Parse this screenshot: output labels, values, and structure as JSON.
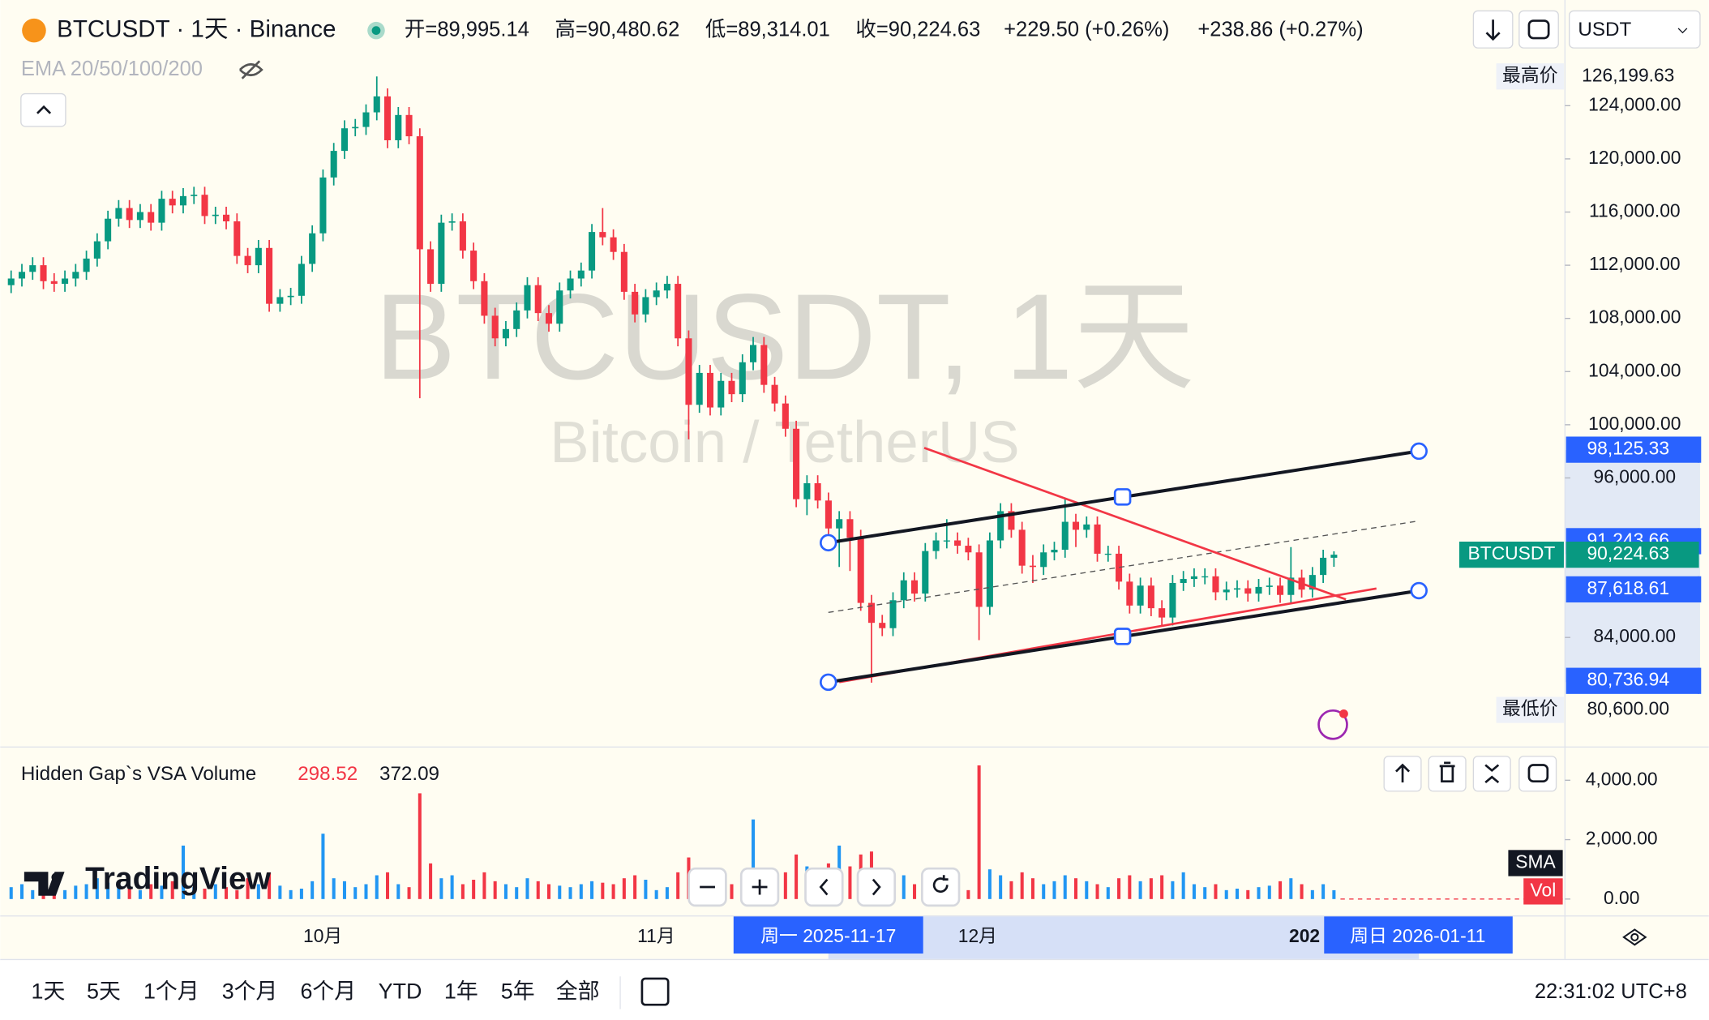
{
  "header": {
    "symbol": "BTCUSDT · 1天 · Binance",
    "quote": [
      "开=89,995.14",
      "高=90,480.62",
      "低=89,314.01",
      "收=90,224.63"
    ],
    "change": "+229.50 (+0.26%)",
    "change2": "+238.86 (+0.27%)",
    "currency": "USDT",
    "indicator": "EMA 20/50/100/200"
  },
  "watermark": {
    "title": "BTCUSDT, 1天",
    "subtitle": "Bitcoin / TetherUS",
    "logo": "TradingView"
  },
  "chart_data": {
    "type": "candlestick",
    "up_color": "#089981",
    "down_color": "#f23645",
    "ylim": [
      75800,
      131950
    ],
    "yticks": [
      {
        "value": 124000,
        "label": "124,000.00"
      },
      {
        "value": 120000,
        "label": "120,000.00"
      },
      {
        "value": 116000,
        "label": "116,000.00"
      },
      {
        "value": 112000,
        "label": "112,000.00"
      },
      {
        "value": 108000,
        "label": "108,000.00"
      },
      {
        "value": 104000,
        "label": "104,000.00"
      },
      {
        "value": 100000,
        "label": "100,000.00"
      },
      {
        "value": 96000,
        "label": "96,000.00"
      },
      {
        "value": 84000,
        "label": "84,000.00"
      }
    ],
    "price_labels": [
      {
        "value": 126199.63,
        "label": "126,199.63",
        "tag": "最高价",
        "style": "plain"
      },
      {
        "value": 98125.33,
        "label": "98,125.33",
        "style": "blue"
      },
      {
        "value": 91243.66,
        "label": "91,243.66",
        "style": "blue"
      },
      {
        "value": 90224.63,
        "label": "90,224.63",
        "tag": "BTCUSDT",
        "style": "green"
      },
      {
        "value": 87618.61,
        "label": "87,618.61",
        "style": "blue"
      },
      {
        "value": 80736.94,
        "label": "80,736.94",
        "style": "blue"
      },
      {
        "value": 80600,
        "label": "80,600.00",
        "tag": "最低价",
        "style": "plain"
      }
    ],
    "x_labels": [
      "10月",
      "11月",
      "12月",
      "202"
    ],
    "crosshair_labels": [
      "周一 2025-11-17",
      "周日 2026-01-11"
    ],
    "candles": [
      [
        110500,
        111600,
        109900,
        111000
      ],
      [
        111000,
        112100,
        110400,
        111500
      ],
      [
        111500,
        112600,
        110900,
        112000
      ],
      [
        112000,
        112600,
        110200,
        110800
      ],
      [
        110800,
        111400,
        110000,
        110600
      ],
      [
        110600,
        111600,
        110000,
        111000
      ],
      [
        111000,
        112100,
        110400,
        111500
      ],
      [
        111500,
        113100,
        110900,
        112500
      ],
      [
        112500,
        114400,
        111900,
        113800
      ],
      [
        113800,
        116100,
        113200,
        115500
      ],
      [
        115500,
        116900,
        114900,
        116300
      ],
      [
        116300,
        116900,
        114800,
        115400
      ],
      [
        115400,
        116600,
        114800,
        116000
      ],
      [
        116000,
        116600,
        114600,
        115200
      ],
      [
        115200,
        117600,
        114600,
        117000
      ],
      [
        117000,
        117600,
        115900,
        116500
      ],
      [
        116500,
        117800,
        115900,
        117200
      ],
      [
        117200,
        117900,
        116600,
        117300
      ],
      [
        117300,
        117900,
        115100,
        115700
      ],
      [
        115700,
        116400,
        115100,
        115800
      ],
      [
        115800,
        116400,
        114700,
        115300
      ],
      [
        115300,
        115900,
        112100,
        112700
      ],
      [
        112700,
        113300,
        111400,
        112000
      ],
      [
        112000,
        113900,
        111400,
        113300
      ],
      [
        113300,
        113900,
        108500,
        109100
      ],
      [
        109100,
        110200,
        108500,
        109600
      ],
      [
        109600,
        110300,
        109000,
        109700
      ],
      [
        109700,
        112700,
        109100,
        112100
      ],
      [
        112100,
        115000,
        111500,
        114400
      ],
      [
        114400,
        119200,
        113800,
        118600
      ],
      [
        118600,
        121200,
        118000,
        120600
      ],
      [
        120600,
        122900,
        120000,
        122300
      ],
      [
        122300,
        123000,
        121700,
        122400
      ],
      [
        122400,
        124100,
        121800,
        123500
      ],
      [
        123500,
        126199.63,
        122900,
        124700
      ],
      [
        124700,
        125300,
        120800,
        121400
      ],
      [
        121400,
        123900,
        120800,
        123300
      ],
      [
        123300,
        123900,
        121100,
        121700
      ],
      [
        121700,
        122300,
        102000,
        113200
      ],
      [
        113200,
        113800,
        110000,
        110600
      ],
      [
        110600,
        115800,
        110000,
        115200
      ],
      [
        115200,
        115900,
        114600,
        115300
      ],
      [
        115300,
        115900,
        112500,
        113100
      ],
      [
        113100,
        113700,
        110200,
        110800
      ],
      [
        110800,
        111400,
        107600,
        108200
      ],
      [
        108200,
        108800,
        105900,
        106500
      ],
      [
        106500,
        107800,
        105900,
        107200
      ],
      [
        107200,
        109200,
        106600,
        108600
      ],
      [
        108600,
        111100,
        108000,
        110500
      ],
      [
        110500,
        111100,
        107800,
        108400
      ],
      [
        108400,
        109000,
        107000,
        107600
      ],
      [
        107600,
        110700,
        107000,
        110100
      ],
      [
        110100,
        111600,
        109500,
        111000
      ],
      [
        111000,
        112200,
        110400,
        111600
      ],
      [
        111600,
        115100,
        111000,
        114500
      ],
      [
        114500,
        116300,
        113500,
        114100
      ],
      [
        114100,
        114700,
        112400,
        113000
      ],
      [
        113000,
        113600,
        109400,
        110000
      ],
      [
        110000,
        110600,
        107700,
        108300
      ],
      [
        108300,
        110200,
        107700,
        109600
      ],
      [
        109600,
        110700,
        109000,
        110100
      ],
      [
        110100,
        111200,
        109500,
        110600
      ],
      [
        110600,
        111200,
        105900,
        106500
      ],
      [
        106500,
        107100,
        98900,
        101500
      ],
      [
        101500,
        104500,
        100900,
        103900
      ],
      [
        103900,
        104500,
        100700,
        101300
      ],
      [
        101300,
        103900,
        100700,
        103300
      ],
      [
        103300,
        103900,
        101700,
        102300
      ],
      [
        102300,
        105300,
        101700,
        104700
      ],
      [
        104700,
        106600,
        104100,
        106000
      ],
      [
        106000,
        106600,
        102400,
        103000
      ],
      [
        103000,
        103600,
        101000,
        101600
      ],
      [
        101600,
        102200,
        99100,
        99700
      ],
      [
        99700,
        100300,
        93800,
        94400
      ],
      [
        94400,
        96200,
        93200,
        95600
      ],
      [
        95600,
        96200,
        93700,
        94300
      ],
      [
        94300,
        94900,
        91600,
        92200
      ],
      [
        92200,
        93500,
        89300,
        92900
      ],
      [
        92900,
        93500,
        89000,
        91500
      ],
      [
        91500,
        92100,
        86000,
        86600
      ],
      [
        86600,
        87200,
        80600,
        85100
      ],
      [
        85100,
        85700,
        84100,
        84700
      ],
      [
        84700,
        87400,
        84100,
        86800
      ],
      [
        86800,
        88900,
        86200,
        88300
      ],
      [
        88300,
        88900,
        86700,
        87300
      ],
      [
        87300,
        91100,
        86700,
        90500
      ],
      [
        90500,
        91900,
        89900,
        91300
      ],
      [
        91300,
        92900,
        90700,
        91300
      ],
      [
        91300,
        91900,
        90300,
        90900
      ],
      [
        90900,
        91500,
        89800,
        90400
      ],
      [
        90400,
        91000,
        83800,
        86300
      ],
      [
        86300,
        91900,
        85700,
        91300
      ],
      [
        91300,
        94100,
        90700,
        93500
      ],
      [
        93500,
        94100,
        91500,
        92100
      ],
      [
        92100,
        92700,
        88800,
        89400
      ],
      [
        89400,
        90200,
        88100,
        89300
      ],
      [
        89300,
        91000,
        88700,
        90400
      ],
      [
        90400,
        91200,
        89800,
        90600
      ],
      [
        90600,
        94500,
        90000,
        92700
      ],
      [
        92700,
        93300,
        90800,
        92100
      ],
      [
        92100,
        93100,
        91500,
        92500
      ],
      [
        92500,
        93100,
        89700,
        90300
      ],
      [
        90300,
        90900,
        89700,
        90300
      ],
      [
        90300,
        90900,
        87600,
        88200
      ],
      [
        88200,
        88800,
        85800,
        86400
      ],
      [
        86400,
        88500,
        85800,
        87900
      ],
      [
        87900,
        88500,
        85600,
        86200
      ],
      [
        86200,
        86800,
        84900,
        85500
      ],
      [
        85500,
        88700,
        84900,
        88100
      ],
      [
        88100,
        89000,
        87500,
        88400
      ],
      [
        88400,
        89200,
        87800,
        88600
      ],
      [
        88600,
        89200,
        88000,
        88600
      ],
      [
        88600,
        89200,
        86800,
        87400
      ],
      [
        87400,
        88200,
        86800,
        87600
      ],
      [
        87600,
        88300,
        87000,
        87700
      ],
      [
        87700,
        88300,
        86700,
        87300
      ],
      [
        87300,
        88400,
        86700,
        87800
      ],
      [
        87800,
        88500,
        87200,
        87900
      ],
      [
        87900,
        88500,
        86600,
        87200
      ],
      [
        87200,
        90800,
        86600,
        88500
      ],
      [
        88500,
        89100,
        87000,
        87600
      ],
      [
        87600,
        89300,
        87000,
        88700
      ],
      [
        88700,
        90600,
        88100,
        89995.14
      ],
      [
        89995.14,
        90480.62,
        89314.01,
        90224.63
      ]
    ],
    "volume": {
      "title": "Hidden Gap`s VSA Volume",
      "last": "298.52",
      "average": "372.09",
      "labels": [
        "SMA",
        "Vol"
      ],
      "up_color": "#2196f3",
      "down_color": "#f23645",
      "ylim": [
        -550,
        5100
      ],
      "yticks": [
        {
          "value": 4000,
          "label": "4,000.00"
        },
        {
          "value": 2000,
          "label": "2,000.00"
        },
        {
          "value": 0,
          "label": "0.00"
        }
      ],
      "values": [
        400,
        500,
        300,
        600,
        350,
        300,
        450,
        500,
        700,
        550,
        400,
        350,
        300,
        500,
        450,
        600,
        1800,
        400,
        350,
        500,
        400,
        300,
        700,
        500,
        900,
        450,
        300,
        350,
        600,
        2200,
        700,
        600,
        400,
        500,
        800,
        900,
        500,
        400,
        3560,
        1200,
        700,
        800,
        500,
        650,
        900,
        600,
        500,
        400,
        700,
        600,
        500,
        450,
        400,
        500,
        600,
        550,
        500,
        700,
        800,
        650,
        300,
        400,
        900,
        1400,
        900,
        800,
        600,
        500,
        700,
        2680,
        800,
        700,
        900,
        1500,
        1100,
        900,
        1200,
        1800,
        1100,
        1500,
        1600,
        900,
        700,
        800,
        500,
        900,
        600,
        400,
        500,
        300,
        4500,
        1000,
        800,
        600,
        900,
        700,
        500,
        600,
        800,
        700,
        600,
        500,
        400,
        700,
        800,
        600,
        700,
        800,
        600,
        900,
        500,
        400,
        500,
        300,
        350,
        300,
        400,
        450,
        600,
        700,
        500,
        300,
        500,
        298.52
      ]
    }
  },
  "toolbar": {
    "ranges": [
      "1天",
      "5天",
      "1个月",
      "3个月",
      "6个月",
      "YTD",
      "1年",
      "5年",
      "全部"
    ],
    "clock": "22:31:02 UTC+8"
  }
}
